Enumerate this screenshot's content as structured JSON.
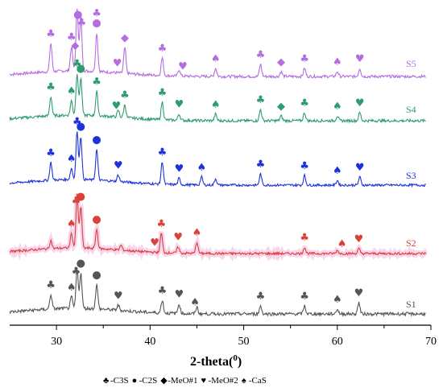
{
  "chart_data": {
    "type": "line",
    "title": "",
    "xlabel_text": "2-theta",
    "xlabel_unit": "0",
    "ylabel": "",
    "xlim": [
      25,
      70
    ],
    "x_ticks": [
      "30",
      "40",
      "50",
      "60",
      "70"
    ],
    "grid": false,
    "series": [
      {
        "name": "S5",
        "color": "#b46ee0",
        "peaks": [
          {
            "x": 29.4,
            "h": 35
          },
          {
            "x": 31.6,
            "h": 30
          },
          {
            "x": 32.2,
            "h": 78
          },
          {
            "x": 32.6,
            "h": 68
          },
          {
            "x": 34.3,
            "h": 48
          },
          {
            "x": 37.3,
            "h": 32
          },
          {
            "x": 41.3,
            "h": 22
          },
          {
            "x": 43.1,
            "h": 8
          },
          {
            "x": 47.0,
            "h": 10
          },
          {
            "x": 51.8,
            "h": 15
          },
          {
            "x": 54.0,
            "h": 6
          },
          {
            "x": 56.5,
            "h": 10
          },
          {
            "x": 60.0,
            "h": 6
          },
          {
            "x": 62.4,
            "h": 10
          }
        ],
        "markers": [
          {
            "x": 29.4,
            "s": "club"
          },
          {
            "x": 31.6,
            "s": "club"
          },
          {
            "x": 32.0,
            "s": "diamond"
          },
          {
            "x": 32.3,
            "s": "dot"
          },
          {
            "x": 32.7,
            "s": "club"
          },
          {
            "x": 34.3,
            "s": "dot"
          },
          {
            "x": 34.3,
            "s": "club"
          },
          {
            "x": 36.5,
            "s": "heart"
          },
          {
            "x": 37.3,
            "s": "diamond"
          },
          {
            "x": 41.3,
            "s": "club"
          },
          {
            "x": 43.5,
            "s": "heart"
          },
          {
            "x": 47.0,
            "s": "spade"
          },
          {
            "x": 51.8,
            "s": "club"
          },
          {
            "x": 54.0,
            "s": "diamond"
          },
          {
            "x": 56.5,
            "s": "club"
          },
          {
            "x": 60.0,
            "s": "spade"
          },
          {
            "x": 62.4,
            "s": "heart"
          }
        ]
      },
      {
        "name": "S4",
        "color": "#2e9d6e",
        "peaks": [
          {
            "x": 29.4,
            "h": 24
          },
          {
            "x": 31.6,
            "h": 18
          },
          {
            "x": 32.2,
            "h": 52
          },
          {
            "x": 32.6,
            "h": 46
          },
          {
            "x": 34.3,
            "h": 30
          },
          {
            "x": 36.6,
            "h": 8
          },
          {
            "x": 37.3,
            "h": 16
          },
          {
            "x": 41.3,
            "h": 22
          },
          {
            "x": 43.1,
            "h": 8
          },
          {
            "x": 47.0,
            "h": 8
          },
          {
            "x": 51.8,
            "h": 14
          },
          {
            "x": 54.0,
            "h": 6
          },
          {
            "x": 56.5,
            "h": 10
          },
          {
            "x": 60.0,
            "h": 6
          },
          {
            "x": 62.4,
            "h": 10
          }
        ],
        "markers": [
          {
            "x": 29.4,
            "s": "club"
          },
          {
            "x": 31.6,
            "s": "spade"
          },
          {
            "x": 32.2,
            "s": "club"
          },
          {
            "x": 32.6,
            "s": "dot"
          },
          {
            "x": 34.3,
            "s": "club"
          },
          {
            "x": 36.4,
            "s": "heart"
          },
          {
            "x": 37.3,
            "s": "club"
          },
          {
            "x": 41.3,
            "s": "club"
          },
          {
            "x": 43.1,
            "s": "heart"
          },
          {
            "x": 47.0,
            "s": "spade"
          },
          {
            "x": 51.8,
            "s": "club"
          },
          {
            "x": 54.0,
            "s": "diamond"
          },
          {
            "x": 56.5,
            "s": "club"
          },
          {
            "x": 60.0,
            "s": "spade"
          },
          {
            "x": 62.4,
            "s": "heart"
          }
        ]
      },
      {
        "name": "S3",
        "color": "#1e32dc",
        "peaks": [
          {
            "x": 29.4,
            "h": 22
          },
          {
            "x": 31.6,
            "h": 14
          },
          {
            "x": 32.2,
            "h": 60
          },
          {
            "x": 32.6,
            "h": 54
          },
          {
            "x": 34.3,
            "h": 38
          },
          {
            "x": 36.6,
            "h": 8
          },
          {
            "x": 41.3,
            "h": 28
          },
          {
            "x": 43.1,
            "h": 8
          },
          {
            "x": 45.5,
            "h": 10
          },
          {
            "x": 47.0,
            "h": 8
          },
          {
            "x": 51.8,
            "h": 14
          },
          {
            "x": 56.5,
            "h": 12
          },
          {
            "x": 60.0,
            "h": 6
          },
          {
            "x": 62.4,
            "h": 10
          }
        ],
        "markers": [
          {
            "x": 29.4,
            "s": "club"
          },
          {
            "x": 31.6,
            "s": "spade"
          },
          {
            "x": 32.2,
            "s": "club"
          },
          {
            "x": 32.6,
            "s": "dot"
          },
          {
            "x": 34.3,
            "s": "dot"
          },
          {
            "x": 36.6,
            "s": "heart"
          },
          {
            "x": 41.3,
            "s": "club"
          },
          {
            "x": 43.1,
            "s": "heart"
          },
          {
            "x": 45.5,
            "s": "spade"
          },
          {
            "x": 51.8,
            "s": "club"
          },
          {
            "x": 56.5,
            "s": "club"
          },
          {
            "x": 60.0,
            "s": "spade"
          },
          {
            "x": 62.4,
            "s": "heart"
          }
        ]
      },
      {
        "name": "S2",
        "color": "#d9423b",
        "peaks": [
          {
            "x": 29.4,
            "h": 10
          },
          {
            "x": 31.6,
            "h": 18
          },
          {
            "x": 32.2,
            "h": 66
          },
          {
            "x": 32.6,
            "h": 52
          },
          {
            "x": 34.3,
            "h": 24
          },
          {
            "x": 36.9,
            "h": 6
          },
          {
            "x": 41.2,
            "h": 24
          },
          {
            "x": 43.0,
            "h": 8
          },
          {
            "x": 45.0,
            "h": 14
          },
          {
            "x": 56.5,
            "h": 8
          },
          {
            "x": 60.0,
            "h": 4
          },
          {
            "x": 62.3,
            "h": 6
          }
        ],
        "markers": [
          {
            "x": 31.6,
            "s": "spade"
          },
          {
            "x": 32.1,
            "s": "club"
          },
          {
            "x": 32.6,
            "s": "dot"
          },
          {
            "x": 34.3,
            "s": "dot"
          },
          {
            "x": 40.5,
            "s": "heart"
          },
          {
            "x": 41.2,
            "s": "club"
          },
          {
            "x": 43.0,
            "s": "heart"
          },
          {
            "x": 45.0,
            "s": "spade"
          },
          {
            "x": 56.5,
            "s": "club"
          },
          {
            "x": 60.5,
            "s": "spade"
          },
          {
            "x": 62.3,
            "s": "heart"
          }
        ]
      },
      {
        "name": "S1",
        "color": "#555555",
        "peaks": [
          {
            "x": 29.4,
            "h": 18
          },
          {
            "x": 31.6,
            "h": 14
          },
          {
            "x": 32.2,
            "h": 48
          },
          {
            "x": 32.6,
            "h": 44
          },
          {
            "x": 34.3,
            "h": 30
          },
          {
            "x": 36.6,
            "h": 6
          },
          {
            "x": 41.3,
            "h": 16
          },
          {
            "x": 43.1,
            "h": 12
          },
          {
            "x": 45.0,
            "h": 8
          },
          {
            "x": 51.8,
            "h": 10
          },
          {
            "x": 56.5,
            "h": 10
          },
          {
            "x": 60.0,
            "h": 6
          },
          {
            "x": 62.3,
            "h": 14
          }
        ],
        "markers": [
          {
            "x": 29.4,
            "s": "club"
          },
          {
            "x": 31.6,
            "s": "spade"
          },
          {
            "x": 32.1,
            "s": "club"
          },
          {
            "x": 32.6,
            "s": "dot"
          },
          {
            "x": 34.3,
            "s": "dot"
          },
          {
            "x": 36.6,
            "s": "heart"
          },
          {
            "x": 41.3,
            "s": "club"
          },
          {
            "x": 43.1,
            "s": "heart"
          },
          {
            "x": 44.8,
            "s": "spade"
          },
          {
            "x": 51.8,
            "s": "club"
          },
          {
            "x": 56.5,
            "s": "club"
          },
          {
            "x": 60.0,
            "s": "spade"
          },
          {
            "x": 62.3,
            "s": "heart"
          }
        ]
      }
    ],
    "legend": [
      {
        "symbol": "club",
        "label": "-C3S"
      },
      {
        "symbol": "dot",
        "label": "-C2S"
      },
      {
        "symbol": "diamond",
        "label": "-MeO#1"
      },
      {
        "symbol": "heart",
        "label": "-MeO#2"
      },
      {
        "symbol": "spade",
        "label": "-CaS"
      }
    ],
    "legend_placement": "bottom-center",
    "symbols": {
      "club": "♣",
      "dot": "●",
      "diamond": "◆",
      "heart": "♥",
      "spade": "♠"
    }
  }
}
